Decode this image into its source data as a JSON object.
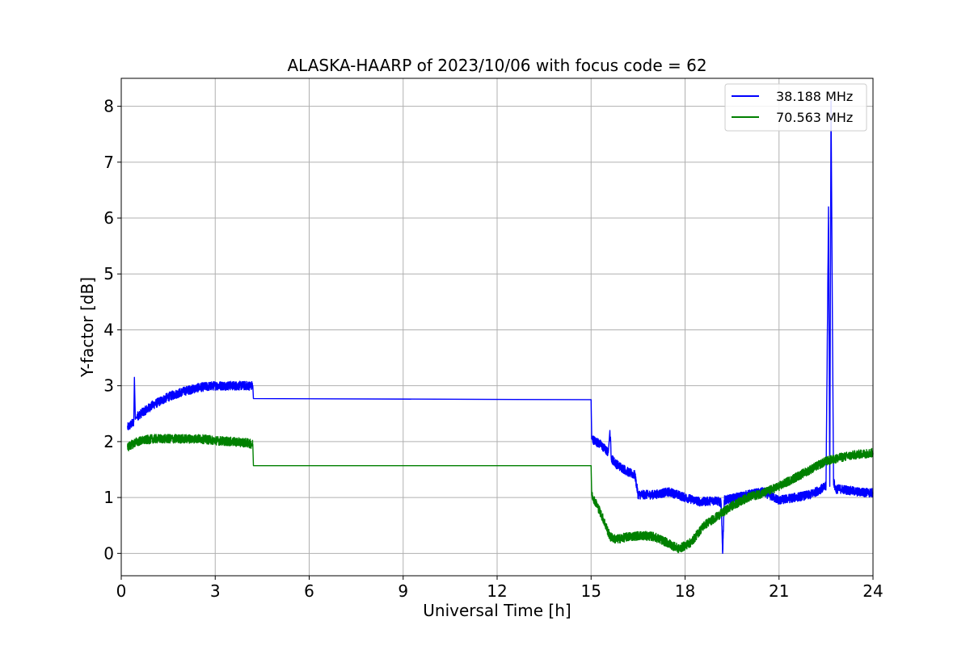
{
  "chart_data": {
    "type": "line",
    "title": "ALASKA-HAARP of 2023/10/06 with focus code = 62",
    "xlabel": "Universal Time [h]",
    "ylabel": "Y-factor [dB]",
    "xlim": [
      0,
      24
    ],
    "ylim": [
      -0.4,
      8.5
    ],
    "xticks": [
      0,
      3,
      6,
      9,
      12,
      15,
      18,
      21,
      24
    ],
    "yticks": [
      0,
      1,
      2,
      3,
      4,
      5,
      6,
      7,
      8
    ],
    "grid": true,
    "legend_position": "top-right",
    "series": [
      {
        "name": "38.188 MHz",
        "color": "#0000ff",
        "noise": 0.08,
        "x": [
          0.2,
          0.4,
          0.42,
          0.45,
          0.5,
          1.0,
          1.5,
          2.0,
          2.5,
          3.0,
          3.5,
          3.8,
          4.2,
          4.22,
          15.0,
          15.02,
          15.3,
          15.55,
          15.6,
          15.65,
          15.8,
          16.2,
          16.4,
          16.5,
          17.0,
          17.5,
          18.0,
          18.5,
          19.0,
          19.15,
          19.2,
          19.25,
          19.5,
          20.0,
          20.5,
          21.0,
          21.5,
          22.0,
          22.5,
          22.58,
          22.62,
          22.66,
          22.7,
          22.74,
          22.8,
          23.0,
          23.5,
          24.0
        ],
        "y": [
          2.25,
          2.35,
          3.15,
          2.4,
          2.45,
          2.65,
          2.8,
          2.9,
          2.97,
          3.0,
          3.0,
          3.0,
          3.0,
          2.77,
          2.75,
          2.05,
          1.95,
          1.8,
          2.2,
          1.7,
          1.6,
          1.45,
          1.4,
          1.05,
          1.05,
          1.1,
          1.0,
          0.92,
          0.95,
          0.9,
          0.0,
          0.95,
          0.98,
          1.05,
          1.1,
          0.95,
          1.0,
          1.05,
          1.2,
          6.2,
          1.2,
          8.1,
          4.5,
          1.3,
          1.15,
          1.15,
          1.1,
          1.08
        ]
      },
      {
        "name": "70.563 MHz",
        "color": "#008000",
        "noise": 0.08,
        "x": [
          0.2,
          0.5,
          1.0,
          1.5,
          2.0,
          2.5,
          3.0,
          3.5,
          4.0,
          4.2,
          4.22,
          15.0,
          15.02,
          15.2,
          15.4,
          15.6,
          15.8,
          16.2,
          16.6,
          17.0,
          17.4,
          17.8,
          18.2,
          18.6,
          19.0,
          19.5,
          20.0,
          20.5,
          21.0,
          21.5,
          22.0,
          22.5,
          23.0,
          23.5,
          24.0
        ],
        "y": [
          1.9,
          2.0,
          2.05,
          2.05,
          2.05,
          2.05,
          2.02,
          2.0,
          1.98,
          1.95,
          1.57,
          1.57,
          1.05,
          0.85,
          0.6,
          0.3,
          0.25,
          0.3,
          0.32,
          0.3,
          0.2,
          0.08,
          0.2,
          0.5,
          0.65,
          0.85,
          1.0,
          1.08,
          1.2,
          1.35,
          1.5,
          1.65,
          1.72,
          1.77,
          1.8
        ]
      }
    ]
  }
}
